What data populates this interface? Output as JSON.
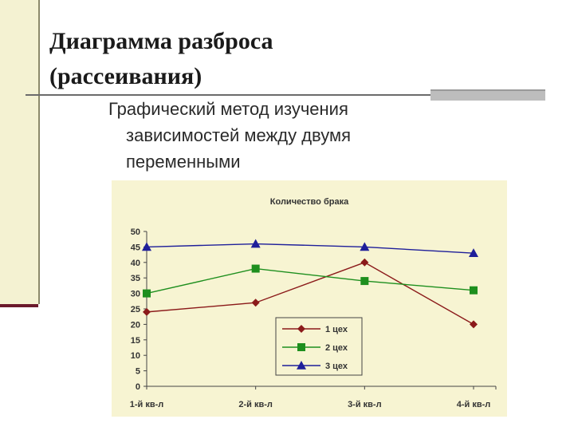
{
  "slide": {
    "title_line1": "Диаграмма разброса",
    "title_line2": "(рассеивания)",
    "subtitle_line1": "Графический метод изучения",
    "subtitle_line2": "зависимостей между двумя",
    "subtitle_line3": "переменными"
  },
  "chart_data": {
    "type": "line",
    "title": "Количество брака",
    "categories": [
      "1-й кв-л",
      "2-й кв-л",
      "3-й кв-л",
      "4-й кв-л"
    ],
    "yticks": [
      0,
      5,
      10,
      15,
      20,
      25,
      30,
      35,
      40,
      45,
      50
    ],
    "ylim": [
      0,
      50
    ],
    "grid": false,
    "legend_position": "inside-lower-right",
    "series": [
      {
        "name": "1 цех",
        "values": [
          24,
          27,
          40,
          20
        ],
        "color": "#8b1a1a",
        "marker": "diamond"
      },
      {
        "name": "2 цех",
        "values": [
          30,
          38,
          34,
          31
        ],
        "color": "#1e8f1e",
        "marker": "square"
      },
      {
        "name": "3 цех",
        "values": [
          45,
          46,
          45,
          43
        ],
        "color": "#1f1f9a",
        "marker": "triangle"
      }
    ]
  }
}
